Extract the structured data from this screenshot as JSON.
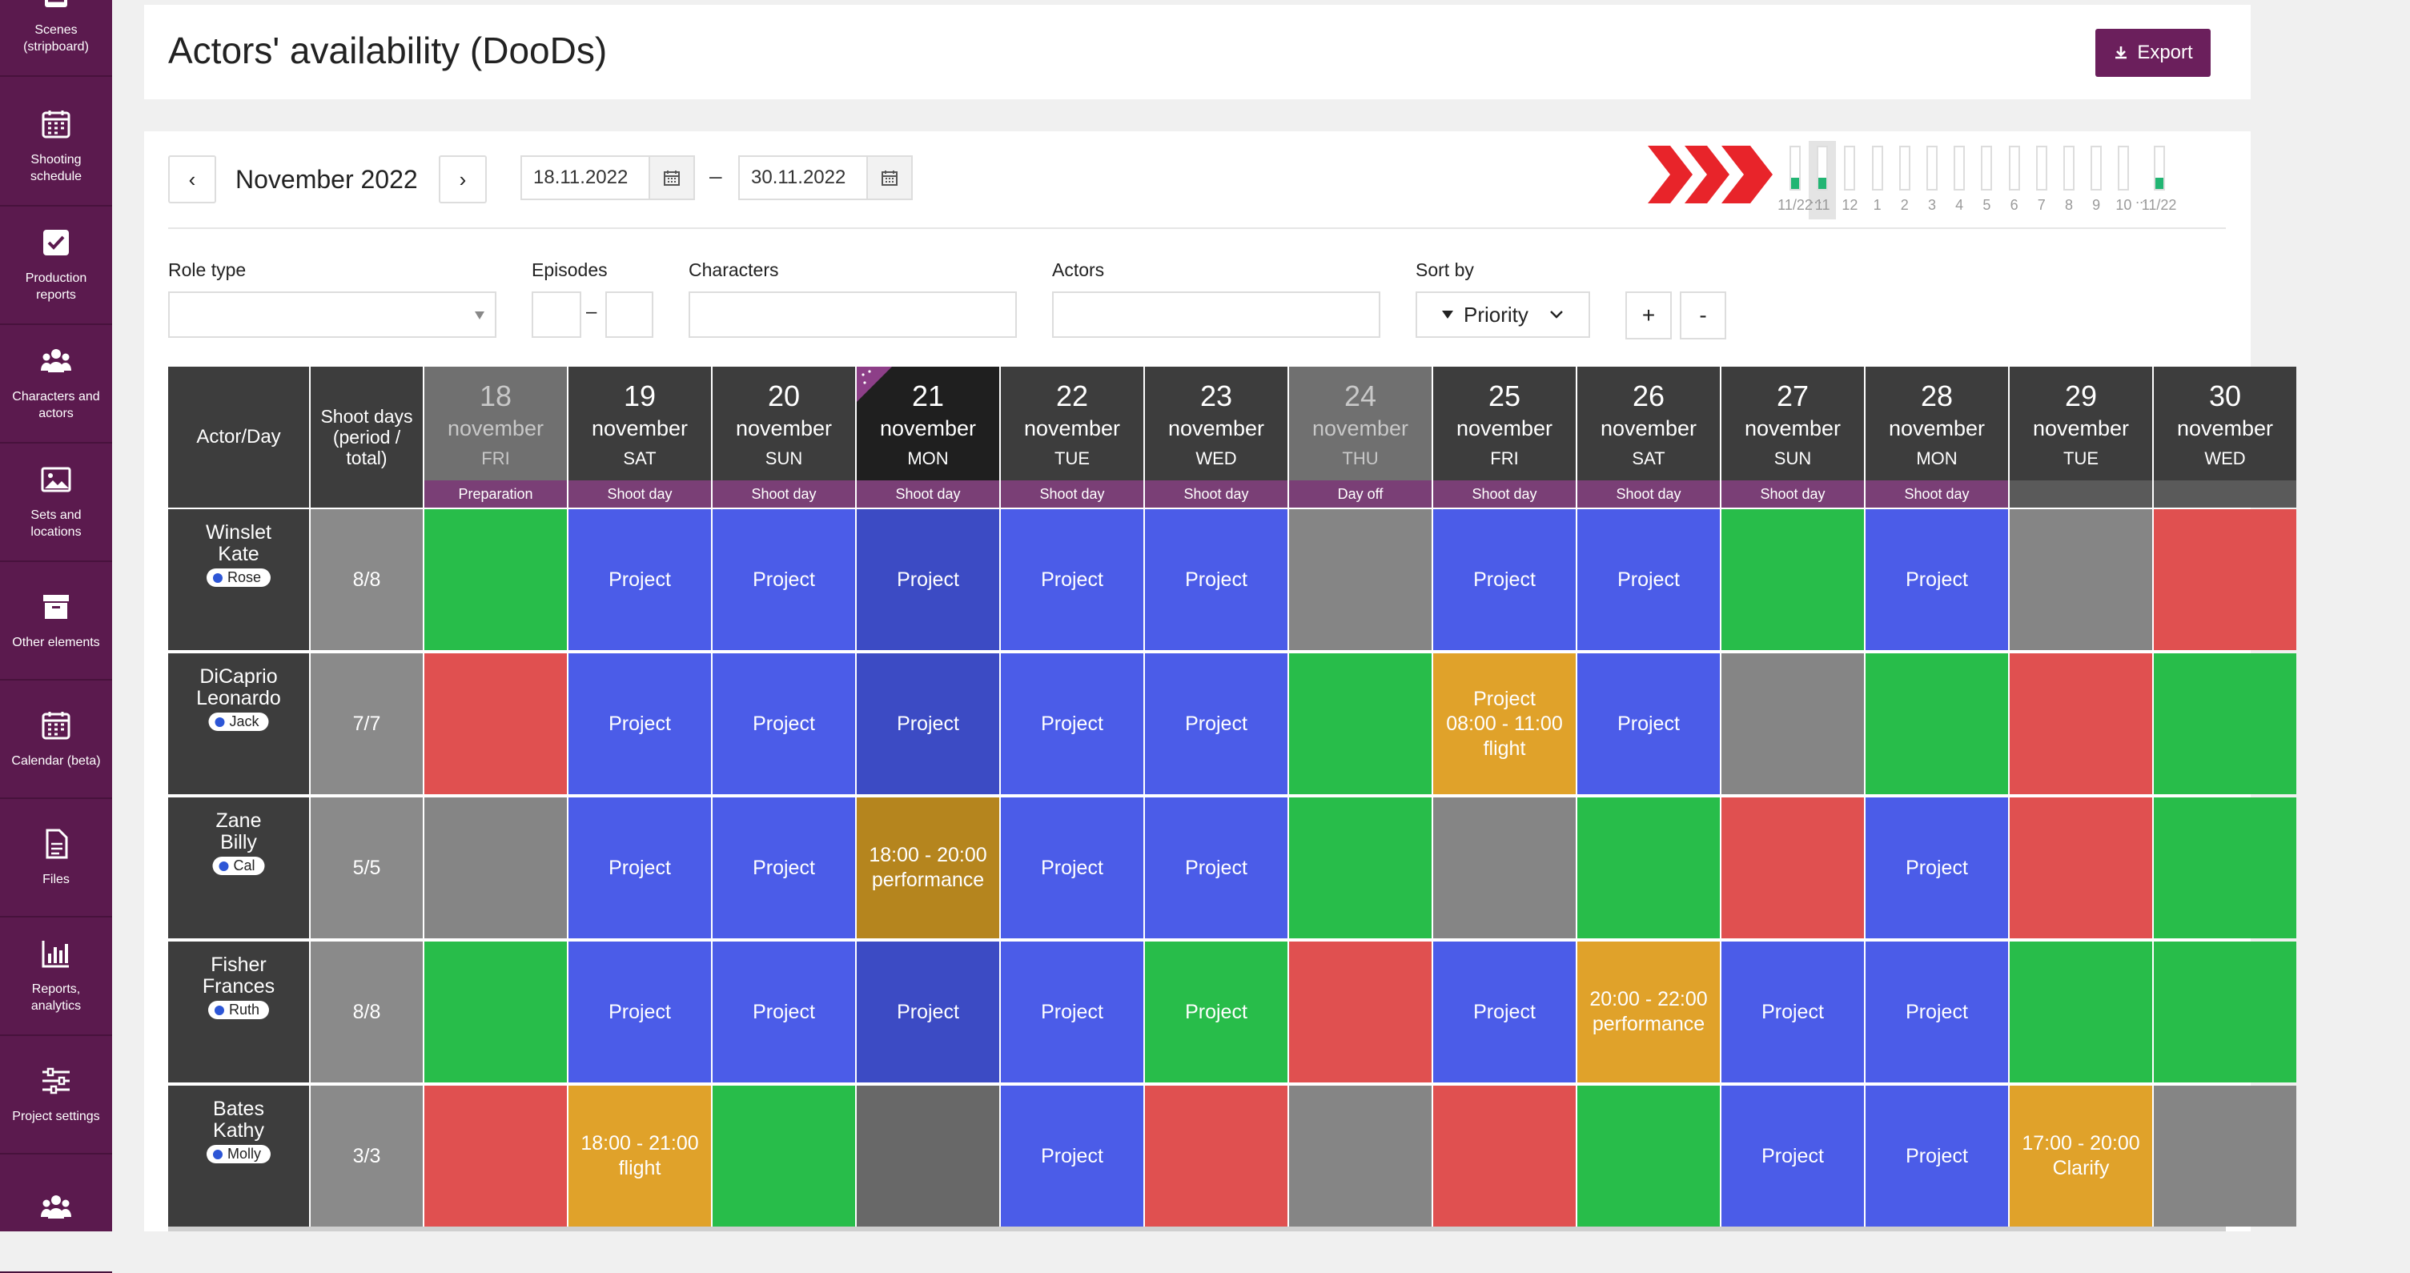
{
  "sidebar": [
    {
      "label": "Scenes\n(stripboard)",
      "icon": "stripboard-icon"
    },
    {
      "label": "Shooting\nschedule",
      "icon": "calendar-icon"
    },
    {
      "label": "Production\nreports",
      "icon": "checkbox-icon"
    },
    {
      "label": "Characters and\nactors",
      "icon": "people-icon"
    },
    {
      "label": "Sets and\nlocations",
      "icon": "image-icon"
    },
    {
      "label": "Other elements",
      "icon": "archive-box-icon"
    },
    {
      "label": "Calendar (beta)",
      "icon": "calendar-icon"
    },
    {
      "label": "Files",
      "icon": "file-icon"
    },
    {
      "label": "Reports,\nanalytics",
      "icon": "bar-chart-icon"
    },
    {
      "label": "Project settings",
      "icon": "sliders-icon"
    },
    {
      "label": "",
      "icon": "people-icon"
    }
  ],
  "header": {
    "title": "Actors' availability (DooDs)",
    "export_label": "Export"
  },
  "toolbar": {
    "prev": "‹",
    "next": "›",
    "month": "November 2022",
    "date_from": "18.11.2022",
    "date_to": "30.11.2022",
    "dash": "–"
  },
  "filters": {
    "role_type": "Role type",
    "episodes": "Episodes",
    "episodes_dash": "–",
    "characters": "Characters",
    "actors": "Actors",
    "sort_by": "Sort by",
    "sort_value": "Priority",
    "plus": "+",
    "minus": "-"
  },
  "minimap": {
    "labels": [
      "11/22",
      "11",
      "12",
      "1",
      "2",
      "3",
      "4",
      "5",
      "6",
      "7",
      "8",
      "9",
      "10",
      "11/22"
    ],
    "ellipsis_left": "...",
    "ellipsis_right": "..."
  },
  "grid": {
    "actor_day_header": "Actor/Day",
    "shoot_days_header": "Shoot days\n(period /\ntotal)",
    "days": [
      {
        "num": "18",
        "month": "november",
        "wd": "FRI",
        "status": "Preparation",
        "dim": true
      },
      {
        "num": "19",
        "month": "november",
        "wd": "SAT",
        "status": "Shoot day"
      },
      {
        "num": "20",
        "month": "november",
        "wd": "SUN",
        "status": "Shoot day"
      },
      {
        "num": "21",
        "month": "november",
        "wd": "MON",
        "status": "Shoot day",
        "today": true
      },
      {
        "num": "22",
        "month": "november",
        "wd": "TUE",
        "status": "Shoot day"
      },
      {
        "num": "23",
        "month": "november",
        "wd": "WED",
        "status": "Shoot day"
      },
      {
        "num": "24",
        "month": "november",
        "wd": "THU",
        "status": "Day off",
        "dim": true
      },
      {
        "num": "25",
        "month": "november",
        "wd": "FRI",
        "status": "Shoot day"
      },
      {
        "num": "26",
        "month": "november",
        "wd": "SAT",
        "status": "Shoot day"
      },
      {
        "num": "27",
        "month": "november",
        "wd": "SUN",
        "status": "Shoot day"
      },
      {
        "num": "28",
        "month": "november",
        "wd": "MON",
        "status": "Shoot day"
      },
      {
        "num": "29",
        "month": "november",
        "wd": "TUE",
        "status": ""
      },
      {
        "num": "30",
        "month": "november",
        "wd": "WED",
        "status": ""
      }
    ],
    "actors": [
      {
        "name": "Winslet\nKate",
        "role": "Rose",
        "shoot": "8/8",
        "cells": [
          [
            "green",
            ""
          ],
          [
            "blue",
            "Project"
          ],
          [
            "blue",
            "Project"
          ],
          [
            "blue-d",
            "Project"
          ],
          [
            "blue",
            "Project"
          ],
          [
            "blue",
            "Project"
          ],
          [
            "gray",
            ""
          ],
          [
            "blue",
            "Project"
          ],
          [
            "blue",
            "Project"
          ],
          [
            "green",
            ""
          ],
          [
            "blue",
            "Project"
          ],
          [
            "gray",
            ""
          ],
          [
            "red",
            ""
          ]
        ]
      },
      {
        "name": "DiCaprio\nLeonardo",
        "role": "Jack",
        "shoot": "7/7",
        "cells": [
          [
            "red",
            ""
          ],
          [
            "blue",
            "Project"
          ],
          [
            "blue",
            "Project"
          ],
          [
            "blue-d",
            "Project"
          ],
          [
            "blue",
            "Project"
          ],
          [
            "blue",
            "Project"
          ],
          [
            "green",
            ""
          ],
          [
            "orange",
            "Project\n08:00 - 11:00\nflight"
          ],
          [
            "blue",
            "Project"
          ],
          [
            "gray",
            ""
          ],
          [
            "green",
            ""
          ],
          [
            "red",
            ""
          ],
          [
            "green",
            ""
          ]
        ]
      },
      {
        "name": "Zane\nBilly",
        "role": "Cal",
        "shoot": "5/5",
        "cells": [
          [
            "gray",
            ""
          ],
          [
            "blue",
            "Project"
          ],
          [
            "blue",
            "Project"
          ],
          [
            "orange-d",
            "18:00 - 20:00\nperformance"
          ],
          [
            "blue",
            "Project"
          ],
          [
            "blue",
            "Project"
          ],
          [
            "green",
            ""
          ],
          [
            "gray",
            ""
          ],
          [
            "green",
            ""
          ],
          [
            "red",
            ""
          ],
          [
            "blue",
            "Project"
          ],
          [
            "red",
            ""
          ],
          [
            "green",
            ""
          ]
        ]
      },
      {
        "name": "Fisher\nFrances",
        "role": "Ruth",
        "shoot": "8/8",
        "cells": [
          [
            "green",
            ""
          ],
          [
            "blue",
            "Project"
          ],
          [
            "blue",
            "Project"
          ],
          [
            "blue-d",
            "Project"
          ],
          [
            "blue",
            "Project"
          ],
          [
            "green",
            "Project"
          ],
          [
            "red",
            ""
          ],
          [
            "blue",
            "Project"
          ],
          [
            "orange",
            "20:00 - 22:00\nperformance"
          ],
          [
            "blue",
            "Project"
          ],
          [
            "blue",
            "Project"
          ],
          [
            "green",
            ""
          ],
          [
            "green",
            ""
          ]
        ]
      },
      {
        "name": "Bates\nKathy",
        "role": "Molly",
        "shoot": "3/3",
        "cells": [
          [
            "red",
            ""
          ],
          [
            "orange",
            "18:00 - 21:00\nflight"
          ],
          [
            "green",
            ""
          ],
          [
            "gray-d",
            ""
          ],
          [
            "blue",
            "Project"
          ],
          [
            "red",
            ""
          ],
          [
            "gray",
            ""
          ],
          [
            "red",
            ""
          ],
          [
            "green",
            ""
          ],
          [
            "blue",
            "Project"
          ],
          [
            "blue",
            "Project"
          ],
          [
            "orange",
            "17:00 - 20:00\nClarify"
          ],
          [
            "gray",
            ""
          ]
        ]
      }
    ]
  },
  "colors": {
    "sidebar": "#5b1a4e",
    "accent": "#6b1f5c",
    "status": "#7a3f76",
    "available": "#28bd4a",
    "busy": "#e05050",
    "project": "#4b5ce8",
    "partial": "#e0a22a",
    "off": "#858585"
  }
}
